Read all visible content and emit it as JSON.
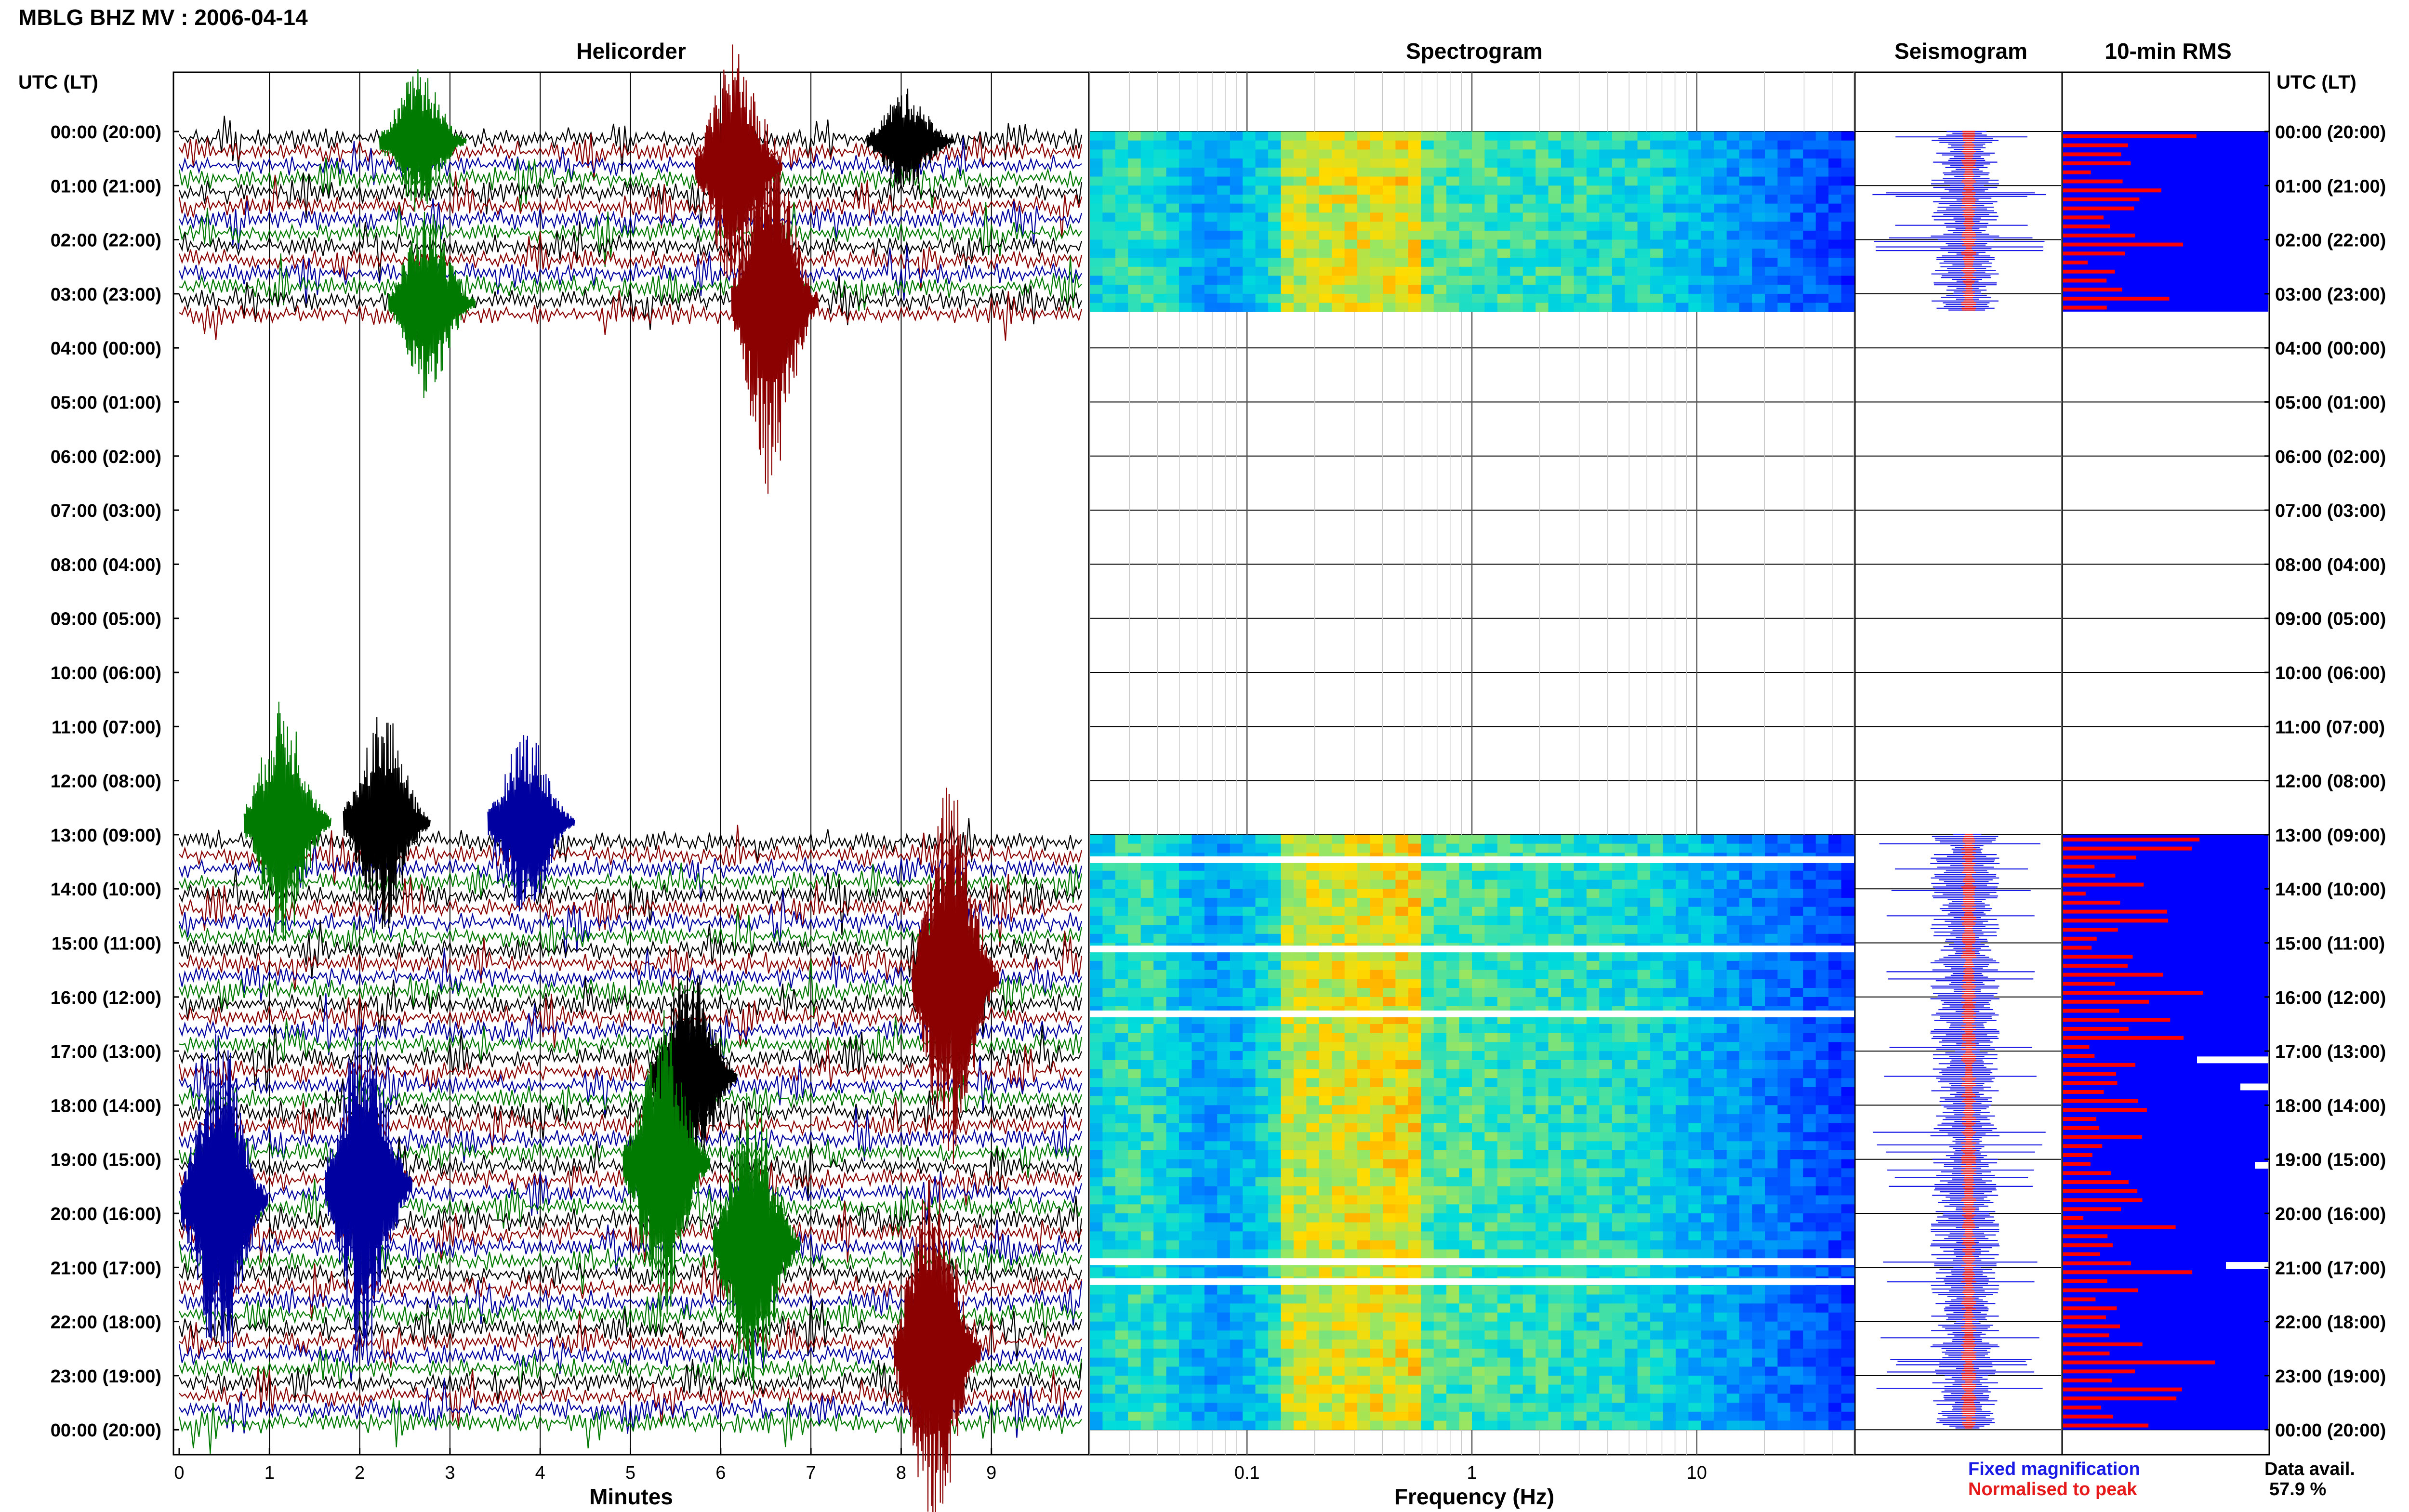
{
  "title": "MBLG BHZ MV : 2006-04-14",
  "panels": {
    "helicorder": "Helicorder",
    "spectrogram": "Spectrogram",
    "seismogram": "Seismogram",
    "rms": "10-min RMS"
  },
  "time_axis_label": "UTC (LT)",
  "row_labels": [
    "00:00 (20:00)",
    "01:00 (21:00)",
    "02:00 (22:00)",
    "03:00 (23:00)",
    "04:00 (00:00)",
    "05:00 (01:00)",
    "06:00 (02:00)",
    "07:00 (03:00)",
    "08:00 (04:00)",
    "09:00 (05:00)",
    "10:00 (06:00)",
    "11:00 (07:00)",
    "12:00 (08:00)",
    "13:00 (09:00)",
    "14:00 (10:00)",
    "15:00 (11:00)",
    "16:00 (12:00)",
    "17:00 (13:00)",
    "18:00 (14:00)",
    "19:00 (15:00)",
    "20:00 (16:00)",
    "21:00 (17:00)",
    "22:00 (18:00)",
    "23:00 (19:00)",
    "00:00 (20:00)"
  ],
  "helicorder_axis": {
    "label": "Minutes",
    "ticks": [
      "0",
      "1",
      "2",
      "3",
      "4",
      "5",
      "6",
      "7",
      "8",
      "9"
    ]
  },
  "spectrogram_axis": {
    "label": "Frequency (Hz)",
    "ticks": [
      "0.1",
      "1",
      "10"
    ]
  },
  "legend": {
    "fixed": "Fixed magnification",
    "normalised": "Normalised to peak",
    "fixed_color": "#1a1ae6",
    "normalised_color": "#e61a1a"
  },
  "data_avail": {
    "label": "Data avail.",
    "value": "57.9 %"
  },
  "colors": {
    "trace": [
      "#000000",
      "#8b0000",
      "#0000a0",
      "#007a00"
    ],
    "rms_fill": "#0000ff",
    "rms_bar": "#ff0000",
    "spectrogram_low": "#0000ff",
    "spectrogram_mid": "#00c8c8",
    "spectrogram_high": "#ffd000"
  },
  "chart_data": {
    "type": "heatmap",
    "station": "MBLG BHZ MV",
    "date": "2006-04-14",
    "minutes_range": [
      0,
      10
    ],
    "frequency_range_hz": [
      0.02,
      50
    ],
    "frequency_scale": "log",
    "data_segments_utc_hours": [
      [
        0,
        3.33
      ],
      [
        13,
        24
      ]
    ],
    "data_availability_percent": 57.9
  }
}
